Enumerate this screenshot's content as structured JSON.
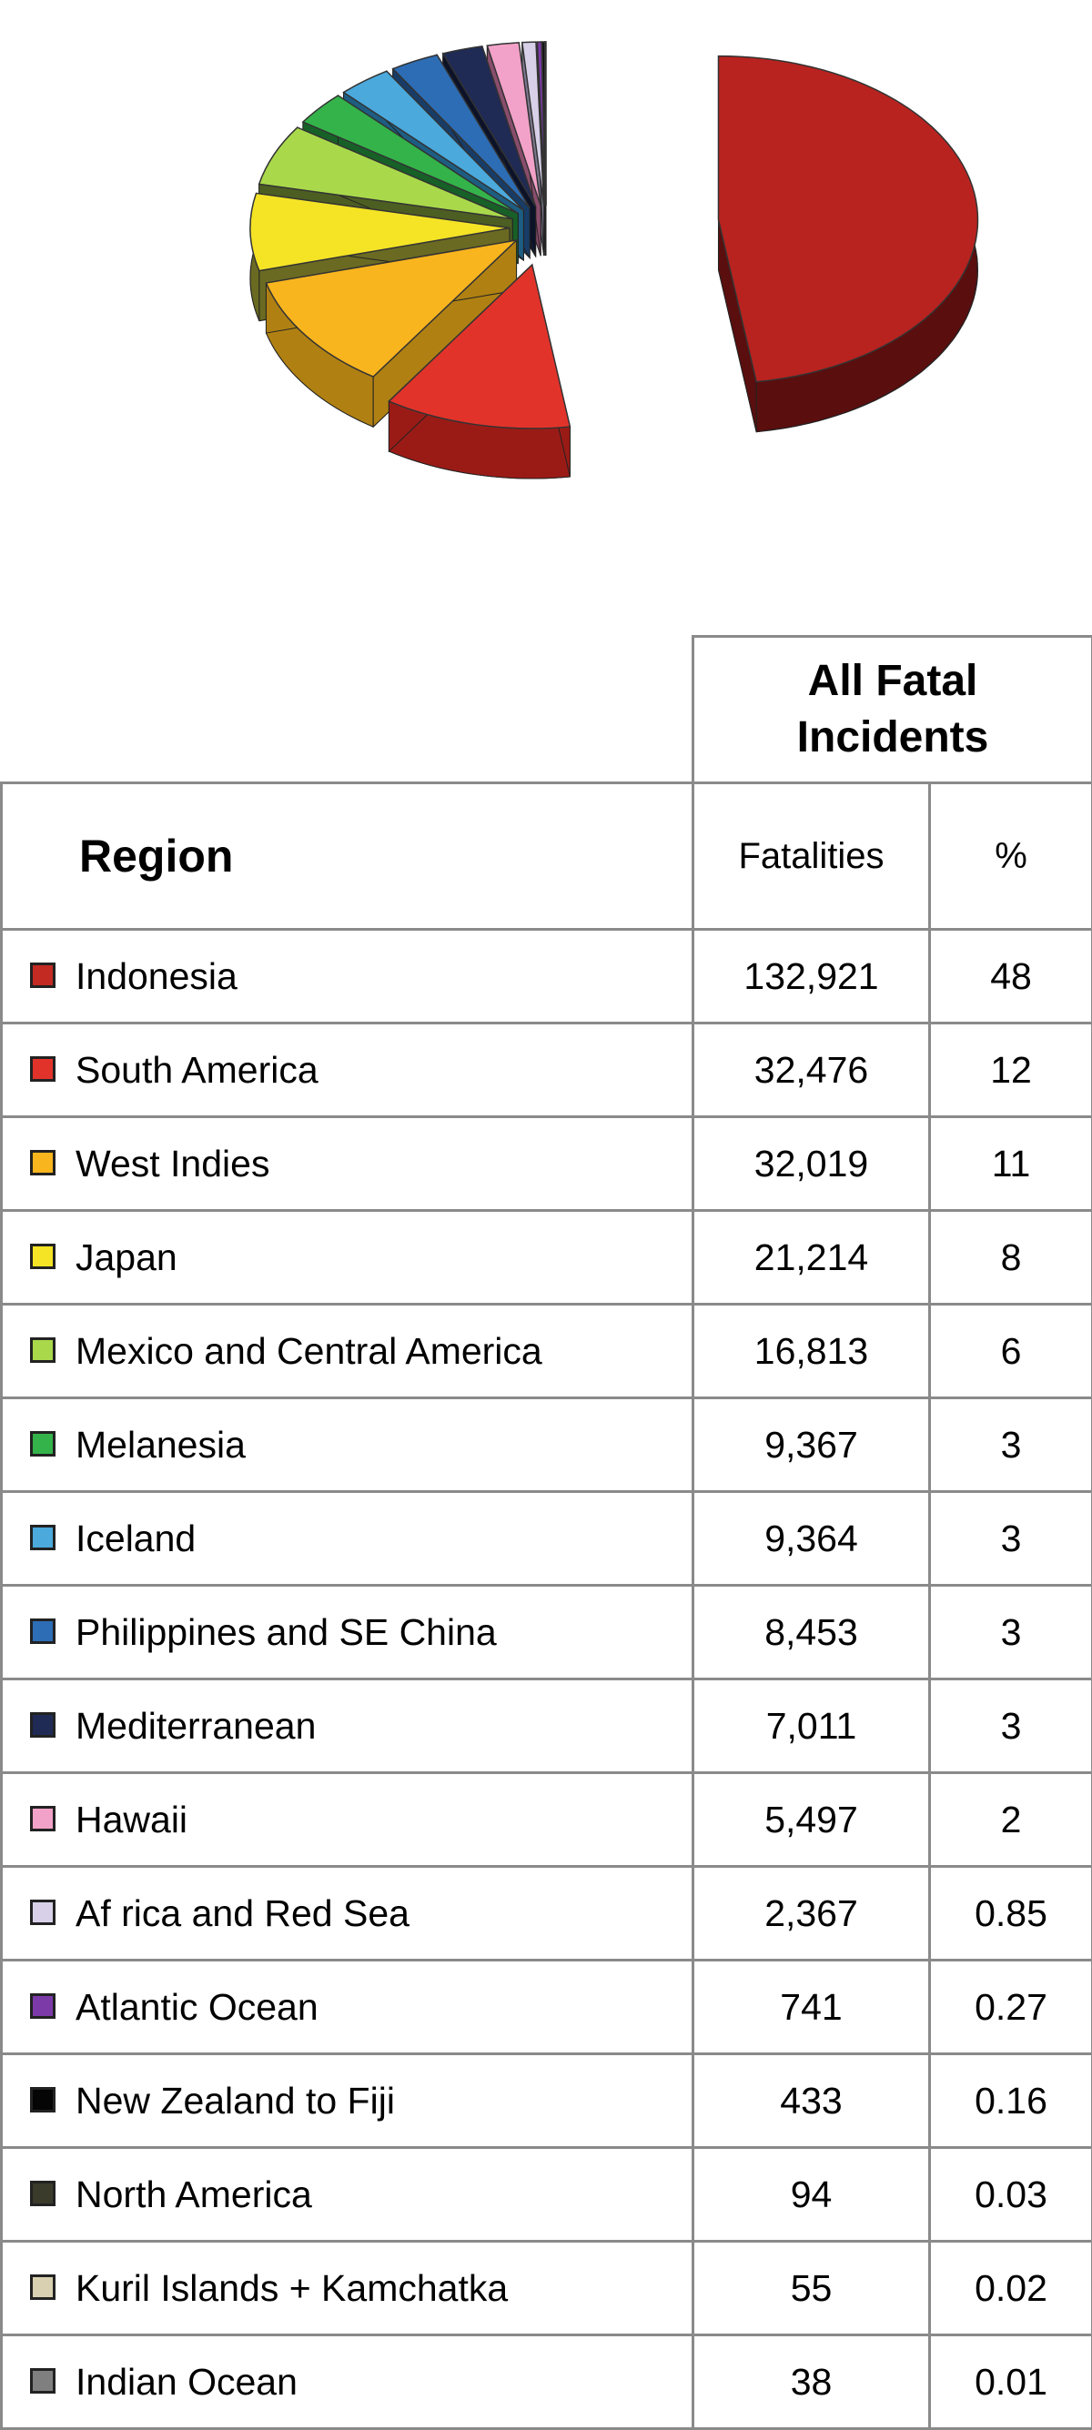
{
  "chart_data": {
    "type": "pie",
    "style": "3d-exploded",
    "slices": [
      {
        "label": "Indonesia",
        "value": 132921,
        "percent": "48",
        "color": "#b8231f",
        "side": "#5a0e0e"
      },
      {
        "label": "South America",
        "value": 32476,
        "percent": "12",
        "color": "#e2332a",
        "side": "#9a1b16"
      },
      {
        "label": "West Indies",
        "value": 32019,
        "percent": "11",
        "color": "#f9b51e",
        "side": "#b08112"
      },
      {
        "label": "Japan",
        "value": 21214,
        "percent": "8",
        "color": "#f4e425",
        "side": "#6a6a22"
      },
      {
        "label": "Mexico and Central America",
        "value": 16813,
        "percent": "6",
        "color": "#a9d94b",
        "side": "#4d5e22"
      },
      {
        "label": "Melanesia",
        "value": 9367,
        "percent": "3",
        "color": "#34b34a",
        "side": "#176027"
      },
      {
        "label": "Iceland",
        "value": 9364,
        "percent": "3",
        "color": "#4ba9dc",
        "side": "#1e5d82"
      },
      {
        "label": "Philippines and SE China",
        "value": 8453,
        "percent": "3",
        "color": "#2d6db5",
        "side": "#173c67"
      },
      {
        "label": "Mediterranean",
        "value": 7011,
        "percent": "3",
        "color": "#1f2a55",
        "side": "#0c1228"
      },
      {
        "label": "Hawaii",
        "value": 5497,
        "percent": "2",
        "color": "#f2a2c8",
        "side": "#8a4d6d"
      },
      {
        "label": "Africa and Red Sea",
        "value": 2367,
        "percent": "0.85",
        "color": "#d7d0e8",
        "side": "#7e7890"
      },
      {
        "label": "Atlantic Ocean",
        "value": 741,
        "percent": "0.27",
        "color": "#7b3aa8",
        "side": "#3e1b57"
      },
      {
        "label": "New Zealand  to Fiji",
        "value": 433,
        "percent": "0.16",
        "color": "#050505",
        "side": "#000000"
      },
      {
        "label": "North America",
        "value": 94,
        "percent": "0.03",
        "color": "#3b3b2c",
        "side": "#1a1a12"
      },
      {
        "label": "Kuril Islands + Kamchatka",
        "value": 55,
        "percent": "0.02",
        "color": "#d8d0b0",
        "side": "#7c7664"
      },
      {
        "label": "Indian Ocean",
        "value": 38,
        "percent": "0.01",
        "color": "#7f7f7f",
        "side": "#444444"
      }
    ]
  },
  "table": {
    "group_header_line1": "All Fatal",
    "group_header_line2": "Incidents",
    "region_header": "Region",
    "fatalities_header": "Fatalities",
    "percent_header": "%",
    "rows": [
      {
        "region": "Indonesia",
        "fatalities": "132,921",
        "percent": "48",
        "color": "#c32a22"
      },
      {
        "region": "South America",
        "fatalities": "32,476",
        "percent": "12",
        "color": "#e2332a"
      },
      {
        "region": "West Indies",
        "fatalities": "32,019",
        "percent": "11",
        "color": "#f9b51e"
      },
      {
        "region": "Japan",
        "fatalities": "21,214",
        "percent": "8",
        "color": "#f4e425"
      },
      {
        "region": "Mexico and Central America",
        "fatalities": "16,813",
        "percent": "6",
        "color": "#a9d94b"
      },
      {
        "region": "Melanesia",
        "fatalities": "9,367",
        "percent": "3",
        "color": "#34b34a"
      },
      {
        "region": "Iceland",
        "fatalities": "9,364",
        "percent": "3",
        "color": "#4ba9dc"
      },
      {
        "region": "Philippines and SE China",
        "fatalities": "8,453",
        "percent": "3",
        "color": "#2d6db5"
      },
      {
        "region": "Mediterranean",
        "fatalities": "7,011",
        "percent": "3",
        "color": "#1f2a55"
      },
      {
        "region": "Hawaii",
        "fatalities": "5,497",
        "percent": "2",
        "color": "#f2a2c8"
      },
      {
        "region": "Af rica and Red Sea",
        "fatalities": "2,367",
        "percent": "0.85",
        "color": "#d7d0e8"
      },
      {
        "region": "Atlantic Ocean",
        "fatalities": "741",
        "percent": "0.27",
        "color": "#7b3aa8"
      },
      {
        "region": "New Zealand  to Fiji",
        "fatalities": "433",
        "percent": "0.16",
        "color": "#050505"
      },
      {
        "region": "North America",
        "fatalities": "94",
        "percent": "0.03",
        "color": "#3b3b2c"
      },
      {
        "region": "Kuril Islands + Kamchatka",
        "fatalities": "55",
        "percent": "0.02",
        "color": "#d8d0b0"
      },
      {
        "region": "Indian Ocean",
        "fatalities": "38",
        "percent": "0.01",
        "color": "#7f7f7f"
      }
    ]
  }
}
